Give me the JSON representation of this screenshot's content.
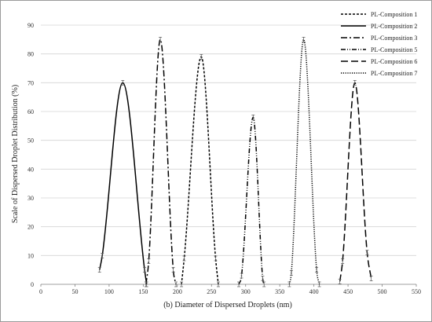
{
  "chart_data": {
    "type": "line",
    "xlabel": "(b)  Diameter of Dispersed Droplets (nm)",
    "ylabel": "Scale of Dispersed Droplet Distribution (%)",
    "xlim": [
      0,
      550
    ],
    "ylim": [
      0,
      90
    ],
    "xticks": [
      0,
      50,
      100,
      150,
      200,
      250,
      300,
      350,
      400,
      450,
      500,
      550
    ],
    "yticks": [
      0,
      10,
      20,
      30,
      40,
      50,
      60,
      70,
      80,
      90
    ],
    "grid": "horizontal",
    "legend_position": "top-right",
    "series": [
      {
        "name": "PL-Composition 1",
        "dash": "3,2",
        "x": [
          206,
          210,
          235,
          256,
          260
        ],
        "y": [
          0,
          9,
          79,
          9,
          0
        ]
      },
      {
        "name": "PL-Composition 2",
        "dash": "",
        "x": [
          86,
          90,
          120,
          152,
          155
        ],
        "y": [
          5,
          10,
          70,
          5,
          0
        ]
      },
      {
        "name": "PL-Composition 3",
        "dash": "8,3,2,3",
        "x": [
          154,
          158,
          175,
          194,
          198
        ],
        "y": [
          0,
          8,
          85,
          5,
          0
        ]
      },
      {
        "name": "PL-Composition 5",
        "dash": "6,2,1,2,1,2",
        "x": [
          290,
          294,
          311,
          325,
          327
        ],
        "y": [
          0,
          3,
          58,
          2,
          0
        ]
      },
      {
        "name": "PL-Composition 6",
        "dash": "9,4",
        "x": [
          438,
          442,
          460,
          478,
          484
        ],
        "y": [
          1,
          8,
          70,
          11,
          2
        ]
      },
      {
        "name": "PL-Composition 7",
        "dash": "1.2,1.6",
        "x": [
          364,
          367,
          385,
          404,
          408
        ],
        "y": [
          0,
          4,
          85,
          5,
          0
        ]
      }
    ]
  }
}
